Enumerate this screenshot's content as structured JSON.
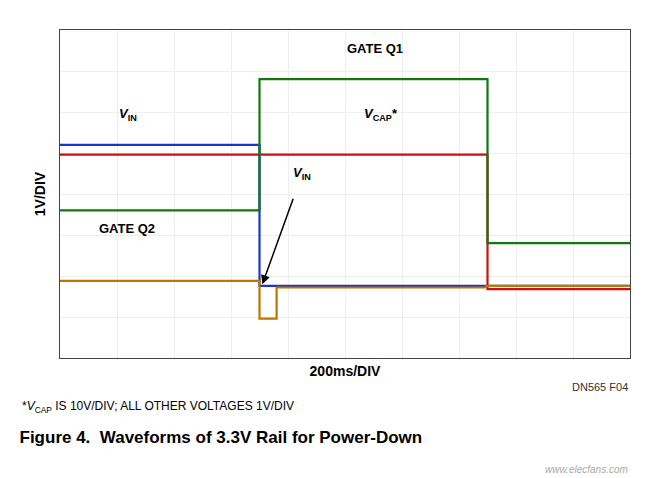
{
  "chart_data": {
    "type": "line",
    "title": "Figure 4.  Waveforms of 3.3V Rail for Power-Down",
    "subtitle": {
      "prefix": "*",
      "text": "V",
      "sub": "CAP",
      "suffix": " IS 10V/DIV; ALL OTHER VOLTAGES 1V/DIV"
    },
    "xlabel": "200ms/DIV",
    "ylabel": "1V/DIV",
    "note": "DN565 F04",
    "watermark": "www.elecfans.com",
    "xlim": [
      0,
      10
    ],
    "ylim": [
      0,
      10
    ],
    "xticks": [
      0,
      1,
      2,
      3,
      4,
      5,
      6,
      7,
      8,
      9,
      10
    ],
    "yticks": [
      0,
      1.25,
      2.5,
      3.75,
      5,
      6.25,
      7.5,
      8.75,
      10
    ],
    "grid": true,
    "tick_labels": false,
    "series": [
      {
        "color": "#1a35cc",
        "x": [
          0,
          3.5,
          3.5,
          10
        ],
        "values": [
          6.5,
          6.5,
          2.2,
          2.2
        ]
      },
      {
        "color": "#cc1111",
        "x": [
          0,
          7.5,
          7.5,
          10
        ],
        "values": [
          6.2,
          6.2,
          2.1,
          2.1
        ]
      },
      {
        "color": "#117711",
        "x": [
          0,
          3.5,
          3.5,
          7.5,
          7.5,
          10
        ],
        "values": [
          4.5,
          4.5,
          8.5,
          8.5,
          3.5,
          3.5
        ]
      },
      {
        "color": "#bb7700",
        "x": [
          0,
          3.5,
          3.5,
          3.8,
          3.8,
          7.45,
          7.5,
          10
        ],
        "values": [
          2.35,
          2.35,
          1.2,
          1.2,
          2.15,
          2.15,
          2.2,
          2.2
        ]
      }
    ],
    "annotations": [
      {
        "text": "V",
        "sub": "IN",
        "x": 1.0,
        "y": 7.1
      },
      {
        "text": "GATE Q1",
        "x": 5.0,
        "y": 9.15
      },
      {
        "text": "V",
        "sub": "CAP",
        "suffix": "*",
        "x": 5.3,
        "y": 7.1
      },
      {
        "text": "V",
        "sub": "IN",
        "x": 4.05,
        "y": 5.3
      },
      {
        "text": "GATE Q2",
        "x": 0.65,
        "y": 3.65
      }
    ],
    "arrow": {
      "from": [
        4.1,
        4.9
      ],
      "to": [
        3.55,
        2.25
      ]
    }
  }
}
